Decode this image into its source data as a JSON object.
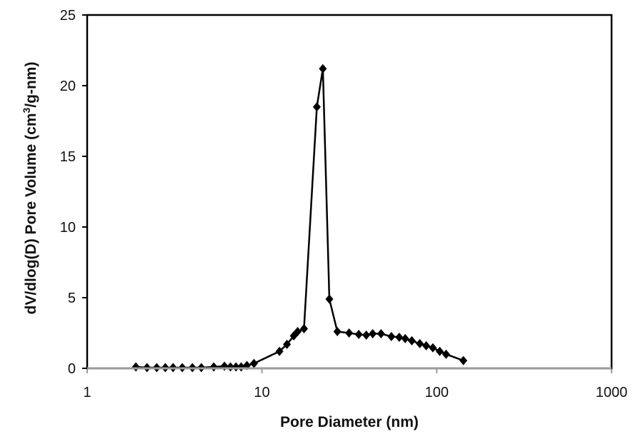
{
  "chart_data": {
    "type": "scatter",
    "title": "",
    "xlabel": "Pore Diameter (nm)",
    "ylabel_parts": {
      "before": "dV/dlog(D) Pore Volume (cm",
      "superscript": "3",
      "after": "/g-nm)"
    },
    "x_scale": "log",
    "xlim": [
      1,
      1000
    ],
    "ylim": [
      0,
      25
    ],
    "x_ticks": [
      1,
      10,
      100,
      1000
    ],
    "x_tick_labels": [
      "1",
      "10",
      "100",
      "1000"
    ],
    "y_ticks": [
      0,
      5,
      10,
      15,
      20,
      25
    ],
    "y_tick_labels": [
      "0",
      "5",
      "10",
      "15",
      "20",
      "25"
    ],
    "grid": false,
    "legend": "none",
    "series": [
      {
        "marker": "diamond",
        "line": true,
        "color": "#000000",
        "points": [
          [
            1.9,
            0.1
          ],
          [
            2.2,
            0.05
          ],
          [
            2.5,
            0.05
          ],
          [
            2.8,
            0.05
          ],
          [
            3.1,
            0.05
          ],
          [
            3.5,
            0.05
          ],
          [
            4.0,
            0.05
          ],
          [
            4.5,
            0.05
          ],
          [
            5.3,
            0.1
          ],
          [
            6.1,
            0.15
          ],
          [
            6.6,
            0.1
          ],
          [
            7.1,
            0.1
          ],
          [
            7.6,
            0.1
          ],
          [
            8.2,
            0.2
          ],
          [
            9.0,
            0.35
          ],
          [
            12.6,
            1.2
          ],
          [
            13.9,
            1.7
          ],
          [
            15.2,
            2.3
          ],
          [
            16.0,
            2.6
          ],
          [
            17.4,
            2.8
          ],
          [
            20.6,
            18.5
          ],
          [
            22.3,
            21.2
          ],
          [
            24.3,
            4.9
          ],
          [
            27.0,
            2.6
          ],
          [
            31.5,
            2.5
          ],
          [
            35.8,
            2.4
          ],
          [
            39.5,
            2.35
          ],
          [
            43.0,
            2.45
          ],
          [
            48.0,
            2.45
          ],
          [
            55.0,
            2.25
          ],
          [
            61.0,
            2.2
          ],
          [
            66.0,
            2.1
          ],
          [
            72.0,
            1.95
          ],
          [
            80.0,
            1.75
          ],
          [
            87.0,
            1.6
          ],
          [
            95.0,
            1.45
          ],
          [
            104.0,
            1.2
          ],
          [
            113.0,
            1.0
          ],
          [
            142.0,
            0.55
          ]
        ]
      }
    ]
  }
}
